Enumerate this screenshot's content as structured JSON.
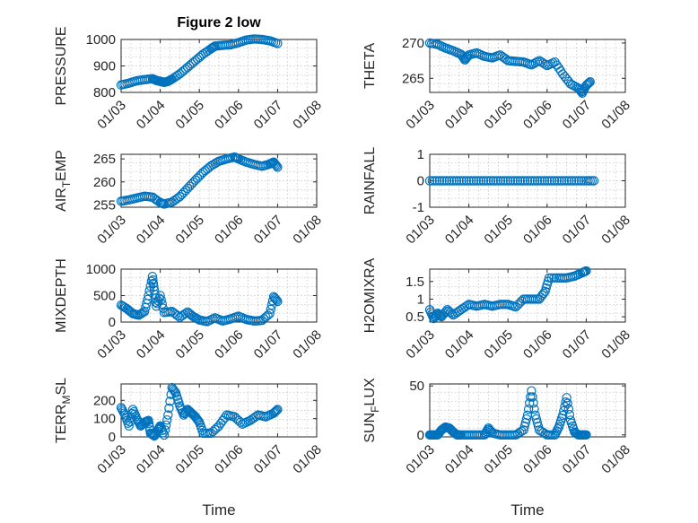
{
  "chart_data": [
    {
      "id": "pressure",
      "type": "scatter",
      "title": "Figure 2 low",
      "ylabel": "PRESSURE",
      "ylabel_sub": "",
      "ylabel_post": "",
      "ylim": [
        800,
        1000
      ],
      "yticks": [
        800,
        900,
        1000
      ],
      "xlim": [
        0,
        5
      ],
      "xticks": [
        0,
        1,
        2,
        3,
        4,
        5
      ],
      "xticklabels": [
        "01/03",
        "01/04",
        "01/05",
        "01/06",
        "01/07",
        "01/08"
      ],
      "xlabel": "",
      "marker_color": "#0072bd",
      "points": [
        [
          0.0,
          828
        ],
        [
          0.2,
          835
        ],
        [
          0.4,
          844
        ],
        [
          0.6,
          848
        ],
        [
          0.8,
          852
        ],
        [
          0.9,
          845
        ],
        [
          1.0,
          842
        ],
        [
          1.1,
          838
        ],
        [
          1.2,
          842
        ],
        [
          1.3,
          850
        ],
        [
          1.5,
          870
        ],
        [
          1.7,
          895
        ],
        [
          1.9,
          920
        ],
        [
          2.1,
          945
        ],
        [
          2.3,
          965
        ],
        [
          2.4,
          975
        ],
        [
          2.6,
          978
        ],
        [
          2.8,
          980
        ],
        [
          3.0,
          988
        ],
        [
          3.2,
          998
        ],
        [
          3.4,
          1002
        ],
        [
          3.6,
          1000
        ],
        [
          3.8,
          995
        ],
        [
          4.0,
          985
        ]
      ]
    },
    {
      "id": "theta",
      "type": "scatter",
      "title": "",
      "ylabel": "THETA",
      "ylabel_sub": "",
      "ylabel_post": "",
      "ylim": [
        263,
        270.5
      ],
      "yticks": [
        265,
        270
      ],
      "xlim": [
        0,
        5
      ],
      "xticks": [
        0,
        1,
        2,
        3,
        4,
        5
      ],
      "xticklabels": [
        "01/03",
        "01/04",
        "01/05",
        "01/06",
        "01/07",
        "01/08"
      ],
      "xlabel": "",
      "marker_color": "#0072bd",
      "points": [
        [
          0.0,
          270
        ],
        [
          0.2,
          269.8
        ],
        [
          0.4,
          269.3
        ],
        [
          0.6,
          268.9
        ],
        [
          0.8,
          268.4
        ],
        [
          0.9,
          267.6
        ],
        [
          1.0,
          268.3
        ],
        [
          1.2,
          268.6
        ],
        [
          1.4,
          268.1
        ],
        [
          1.6,
          267.9
        ],
        [
          1.8,
          268.3
        ],
        [
          2.0,
          267.5
        ],
        [
          2.2,
          267.4
        ],
        [
          2.4,
          267.3
        ],
        [
          2.6,
          266.9
        ],
        [
          2.8,
          267.5
        ],
        [
          3.0,
          266.8
        ],
        [
          3.2,
          267.3
        ],
        [
          3.4,
          265.6
        ],
        [
          3.6,
          264.2
        ],
        [
          3.8,
          263.6
        ],
        [
          3.9,
          262.9
        ],
        [
          4.0,
          264.0
        ],
        [
          4.1,
          264.5
        ]
      ]
    },
    {
      "id": "airtemp",
      "type": "scatter",
      "title": "",
      "ylabel": "AIR",
      "ylabel_sub": "T",
      "ylabel_post": "EMP",
      "ylim": [
        254.5,
        266
      ],
      "yticks": [
        255,
        260,
        265
      ],
      "xlim": [
        0,
        5
      ],
      "xticks": [
        0,
        1,
        2,
        3,
        4,
        5
      ],
      "xticklabels": [
        "01/03",
        "01/04",
        "01/05",
        "01/06",
        "01/07",
        "01/08"
      ],
      "xlabel": "",
      "marker_color": "#0072bd",
      "points": [
        [
          0.0,
          255.8
        ],
        [
          0.2,
          256.1
        ],
        [
          0.4,
          256.5
        ],
        [
          0.6,
          256.9
        ],
        [
          0.8,
          256.7
        ],
        [
          1.0,
          255.5
        ],
        [
          1.1,
          255.2
        ],
        [
          1.3,
          255.6
        ],
        [
          1.5,
          256.8
        ],
        [
          1.7,
          258.6
        ],
        [
          1.9,
          260.4
        ],
        [
          2.1,
          262.1
        ],
        [
          2.3,
          263.5
        ],
        [
          2.5,
          264.5
        ],
        [
          2.7,
          265.0
        ],
        [
          2.9,
          265.4
        ],
        [
          3.0,
          265.0
        ],
        [
          3.2,
          264.3
        ],
        [
          3.4,
          263.8
        ],
        [
          3.6,
          263.4
        ],
        [
          3.8,
          263.9
        ],
        [
          3.9,
          264.3
        ],
        [
          4.0,
          263.2
        ]
      ]
    },
    {
      "id": "rainfall",
      "type": "scatter",
      "title": "",
      "ylabel": "RAINFALL",
      "ylabel_sub": "",
      "ylabel_post": "",
      "ylim": [
        -1,
        1
      ],
      "yticks": [
        -1,
        0,
        1
      ],
      "xlim": [
        0,
        5
      ],
      "xticks": [
        0,
        1,
        2,
        3,
        4,
        5
      ],
      "xticklabels": [
        "01/03",
        "01/04",
        "01/05",
        "01/06",
        "01/07",
        "01/08"
      ],
      "xlabel": "",
      "marker_color": "#0072bd",
      "points": [
        [
          0.0,
          0
        ],
        [
          0.25,
          0
        ],
        [
          0.5,
          0
        ],
        [
          0.75,
          0
        ],
        [
          1.0,
          0
        ],
        [
          1.25,
          0
        ],
        [
          1.5,
          0
        ],
        [
          1.75,
          0
        ],
        [
          2.0,
          0
        ],
        [
          2.25,
          0
        ],
        [
          2.5,
          0
        ],
        [
          2.75,
          0
        ],
        [
          3.0,
          0
        ],
        [
          3.25,
          0
        ],
        [
          3.5,
          0
        ],
        [
          3.75,
          0
        ],
        [
          4.0,
          0
        ],
        [
          4.2,
          0
        ]
      ]
    },
    {
      "id": "mixdepth",
      "type": "scatter",
      "title": "",
      "ylabel": "MIXDEPTH",
      "ylabel_sub": "",
      "ylabel_post": "",
      "ylim": [
        0,
        1000
      ],
      "yticks": [
        0,
        500,
        1000
      ],
      "xlim": [
        0,
        5
      ],
      "xticks": [
        0,
        1,
        2,
        3,
        4,
        5
      ],
      "xticklabels": [
        "01/03",
        "01/04",
        "01/05",
        "01/06",
        "01/07",
        "01/08"
      ],
      "xlabel": "",
      "marker_color": "#0072bd",
      "points": [
        [
          0.0,
          320
        ],
        [
          0.15,
          250
        ],
        [
          0.3,
          160
        ],
        [
          0.45,
          130
        ],
        [
          0.6,
          200
        ],
        [
          0.7,
          500
        ],
        [
          0.8,
          860
        ],
        [
          0.85,
          600
        ],
        [
          0.9,
          300
        ],
        [
          1.0,
          500
        ],
        [
          1.1,
          180
        ],
        [
          1.3,
          200
        ],
        [
          1.5,
          90
        ],
        [
          1.7,
          190
        ],
        [
          1.85,
          100
        ],
        [
          2.0,
          40
        ],
        [
          2.2,
          10
        ],
        [
          2.4,
          80
        ],
        [
          2.6,
          20
        ],
        [
          2.8,
          60
        ],
        [
          3.0,
          110
        ],
        [
          3.2,
          50
        ],
        [
          3.4,
          20
        ],
        [
          3.6,
          30
        ],
        [
          3.8,
          160
        ],
        [
          3.9,
          480
        ],
        [
          4.0,
          390
        ]
      ]
    },
    {
      "id": "h2omixra",
      "type": "scatter",
      "title": "",
      "ylabel": "H2OMIXRA",
      "ylabel_sub": "",
      "ylabel_post": "",
      "ylim": [
        0.35,
        1.85
      ],
      "yticks": [
        0.5,
        1,
        1.5
      ],
      "xlim": [
        0,
        5
      ],
      "xticks": [
        0,
        1,
        2,
        3,
        4,
        5
      ],
      "xticklabels": [
        "01/03",
        "01/04",
        "01/05",
        "01/06",
        "01/07",
        "01/08"
      ],
      "xlabel": "",
      "marker_color": "#0072bd",
      "points": [
        [
          0.0,
          0.7
        ],
        [
          0.1,
          0.45
        ],
        [
          0.2,
          0.6
        ],
        [
          0.3,
          0.5
        ],
        [
          0.45,
          0.7
        ],
        [
          0.6,
          0.55
        ],
        [
          0.8,
          0.7
        ],
        [
          1.0,
          0.85
        ],
        [
          1.2,
          0.8
        ],
        [
          1.4,
          0.85
        ],
        [
          1.6,
          0.8
        ],
        [
          1.8,
          0.85
        ],
        [
          2.0,
          0.85
        ],
        [
          2.2,
          0.78
        ],
        [
          2.4,
          1.0
        ],
        [
          2.6,
          1.0
        ],
        [
          2.8,
          1.0
        ],
        [
          2.95,
          1.22
        ],
        [
          3.05,
          1.6
        ],
        [
          3.3,
          1.6
        ],
        [
          3.5,
          1.6
        ],
        [
          3.7,
          1.65
        ],
        [
          3.9,
          1.75
        ],
        [
          4.0,
          1.8
        ]
      ]
    },
    {
      "id": "terrmsl",
      "type": "scatter",
      "title": "",
      "ylabel": "TERR",
      "ylabel_sub": "M",
      "ylabel_post": "SL",
      "ylim": [
        0,
        290
      ],
      "yticks": [
        0,
        100,
        200
      ],
      "xlim": [
        0,
        5
      ],
      "xticks": [
        0,
        1,
        2,
        3,
        4,
        5
      ],
      "xticklabels": [
        "01/03",
        "01/04",
        "01/05",
        "01/06",
        "01/07",
        "01/08"
      ],
      "xlabel": "Time",
      "marker_color": "#0072bd",
      "points": [
        [
          0.0,
          160
        ],
        [
          0.1,
          120
        ],
        [
          0.2,
          60
        ],
        [
          0.3,
          150
        ],
        [
          0.4,
          100
        ],
        [
          0.5,
          60
        ],
        [
          0.6,
          80
        ],
        [
          0.7,
          90
        ],
        [
          0.75,
          20
        ],
        [
          0.85,
          5
        ],
        [
          0.95,
          40
        ],
        [
          1.0,
          60
        ],
        [
          1.1,
          10
        ],
        [
          1.2,
          120
        ],
        [
          1.3,
          270
        ],
        [
          1.4,
          240
        ],
        [
          1.5,
          170
        ],
        [
          1.6,
          120
        ],
        [
          1.7,
          150
        ],
        [
          1.8,
          130
        ],
        [
          1.9,
          110
        ],
        [
          2.0,
          80
        ],
        [
          2.1,
          20
        ],
        [
          2.3,
          20
        ],
        [
          2.5,
          60
        ],
        [
          2.7,
          120
        ],
        [
          2.9,
          110
        ],
        [
          3.1,
          70
        ],
        [
          3.3,
          90
        ],
        [
          3.5,
          120
        ],
        [
          3.7,
          110
        ],
        [
          3.9,
          130
        ],
        [
          4.0,
          150
        ]
      ]
    },
    {
      "id": "sunflux",
      "type": "scatter",
      "title": "",
      "ylabel": "SUN",
      "ylabel_sub": "F",
      "ylabel_post": "LUX",
      "ylim": [
        -2,
        52
      ],
      "yticks": [
        0,
        50
      ],
      "xlim": [
        0,
        5
      ],
      "xticks": [
        0,
        1,
        2,
        3,
        4,
        5
      ],
      "xticklabels": [
        "01/03",
        "01/04",
        "01/05",
        "01/06",
        "01/07",
        "01/08"
      ],
      "xlabel": "Time",
      "marker_color": "#0072bd",
      "points": [
        [
          0.0,
          0
        ],
        [
          0.1,
          0
        ],
        [
          0.2,
          0
        ],
        [
          0.3,
          5
        ],
        [
          0.4,
          8
        ],
        [
          0.5,
          7
        ],
        [
          0.6,
          3
        ],
        [
          0.7,
          0
        ],
        [
          0.8,
          0
        ],
        [
          1.0,
          0
        ],
        [
          1.2,
          0
        ],
        [
          1.4,
          0
        ],
        [
          1.5,
          7
        ],
        [
          1.6,
          2
        ],
        [
          1.8,
          0
        ],
        [
          2.0,
          0
        ],
        [
          2.2,
          0
        ],
        [
          2.4,
          5
        ],
        [
          2.5,
          20
        ],
        [
          2.6,
          45
        ],
        [
          2.7,
          20
        ],
        [
          2.8,
          5
        ],
        [
          3.0,
          0
        ],
        [
          3.2,
          0
        ],
        [
          3.3,
          8
        ],
        [
          3.4,
          20
        ],
        [
          3.5,
          38
        ],
        [
          3.6,
          15
        ],
        [
          3.7,
          3
        ],
        [
          3.8,
          0
        ],
        [
          3.9,
          0
        ],
        [
          4.0,
          0
        ]
      ]
    }
  ]
}
